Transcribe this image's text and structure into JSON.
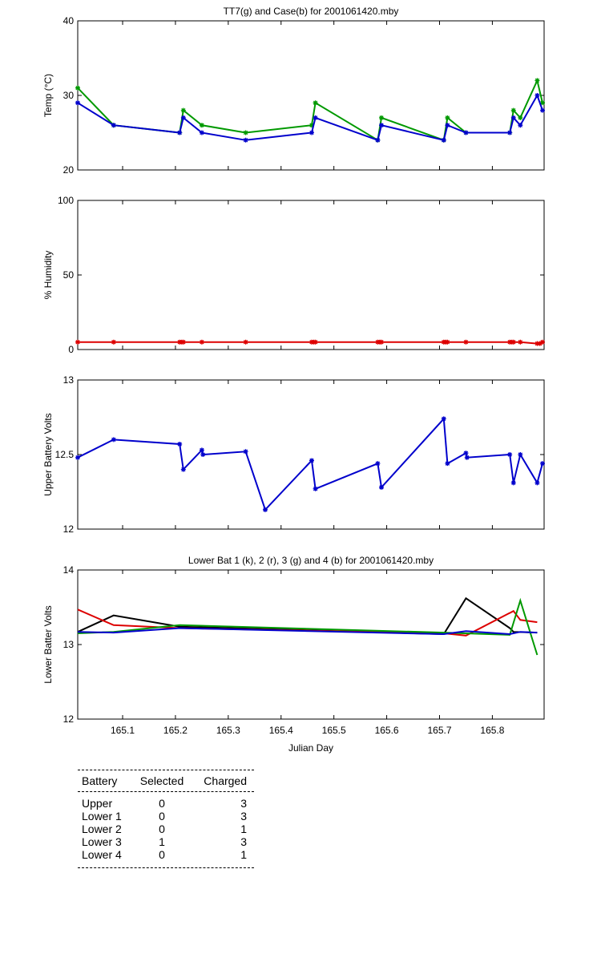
{
  "chart_data": [
    {
      "id": "temp",
      "type": "line",
      "title": "TT7(g) and Case(b) for 2001061420.mby",
      "xlabel": "",
      "ylabel": "Temp  (°C)",
      "xlim": [
        165.015,
        165.898
      ],
      "ylim": [
        20,
        40
      ],
      "yticks": [
        20,
        30,
        40
      ],
      "series": [
        {
          "name": "TT7",
          "color": "#009900",
          "marker": "*",
          "x": [
            165.015,
            165.083,
            165.208,
            165.215,
            165.25,
            165.333,
            165.458,
            165.465,
            165.583,
            165.59,
            165.708,
            165.715,
            165.75,
            165.833,
            165.84,
            165.853,
            165.885,
            165.895
          ],
          "y": [
            31,
            26,
            25,
            28,
            26,
            25,
            26,
            29,
            24,
            27,
            24,
            27,
            25,
            25,
            28,
            27,
            32,
            29
          ]
        },
        {
          "name": "Case",
          "color": "#0000cc",
          "marker": "*",
          "x": [
            165.015,
            165.083,
            165.208,
            165.215,
            165.25,
            165.333,
            165.458,
            165.465,
            165.583,
            165.59,
            165.708,
            165.715,
            165.75,
            165.833,
            165.84,
            165.853,
            165.885,
            165.895
          ],
          "y": [
            29,
            26,
            25,
            27,
            25,
            24,
            25,
            27,
            24,
            26,
            24,
            26,
            25,
            25,
            27,
            26,
            30,
            28
          ]
        }
      ]
    },
    {
      "id": "humidity",
      "type": "line",
      "title": "",
      "xlabel": "",
      "ylabel": "% Humidity",
      "xlim": [
        165.015,
        165.898
      ],
      "ylim": [
        0,
        100
      ],
      "yticks": [
        0,
        50,
        100
      ],
      "series": [
        {
          "name": "Humidity",
          "color": "#dd0000",
          "marker": "*",
          "x": [
            165.015,
            165.083,
            165.208,
            165.212,
            165.215,
            165.25,
            165.333,
            165.458,
            165.462,
            165.465,
            165.583,
            165.587,
            165.59,
            165.708,
            165.712,
            165.715,
            165.75,
            165.833,
            165.837,
            165.84,
            165.853,
            165.885,
            165.89,
            165.895
          ],
          "y": [
            5,
            5,
            5,
            5,
            5,
            5,
            5,
            5,
            5,
            5,
            5,
            5,
            5,
            5,
            5,
            5,
            5,
            5,
            5,
            5,
            5,
            4,
            4,
            5
          ]
        }
      ]
    },
    {
      "id": "upper",
      "type": "line",
      "title": "",
      "xlabel": "",
      "ylabel": "Upper Battery Volts",
      "xlim": [
        165.015,
        165.898
      ],
      "ylim": [
        12,
        13
      ],
      "yticks": [
        12,
        12.5,
        13
      ],
      "yticklabels": [
        "12",
        "12.5",
        "13"
      ],
      "series": [
        {
          "name": "Upper",
          "color": "#0000cc",
          "marker": "*",
          "x": [
            165.015,
            165.083,
            165.208,
            165.215,
            165.25,
            165.252,
            165.333,
            165.37,
            165.458,
            165.465,
            165.583,
            165.59,
            165.708,
            165.715,
            165.75,
            165.752,
            165.833,
            165.84,
            165.853,
            165.885,
            165.895
          ],
          "y": [
            12.48,
            12.6,
            12.57,
            12.4,
            12.53,
            12.5,
            12.52,
            12.13,
            12.46,
            12.27,
            12.44,
            12.28,
            12.74,
            12.44,
            12.51,
            12.48,
            12.5,
            12.31,
            12.5,
            12.31,
            12.44
          ]
        }
      ]
    },
    {
      "id": "lower",
      "type": "line",
      "title": "Lower Bat 1 (k), 2 (r), 3 (g) and 4 (b) for 2001061420.mby",
      "xlabel": "Julian Day",
      "ylabel": "Lower Batter Volts",
      "xlim": [
        165.015,
        165.898
      ],
      "ylim": [
        12,
        14
      ],
      "yticks": [
        12,
        13,
        14
      ],
      "xticks": [
        165.1,
        165.2,
        165.3,
        165.4,
        165.5,
        165.6,
        165.7,
        165.8
      ],
      "xticklabels": [
        "165.1",
        "165.2",
        "165.3",
        "165.4",
        "165.5",
        "165.6",
        "165.7",
        "165.8"
      ],
      "series": [
        {
          "name": "Lower Bat 1",
          "color": "#000000",
          "x": [
            165.015,
            165.083,
            165.208,
            165.708,
            165.75,
            165.833,
            165.84,
            165.885
          ],
          "y": [
            13.17,
            13.39,
            13.24,
            13.14,
            13.62,
            13.22,
            13.17,
            13.16
          ]
        },
        {
          "name": "Lower Bat 2",
          "color": "#dd0000",
          "x": [
            165.015,
            165.083,
            165.208,
            165.708,
            165.75,
            165.84,
            165.853,
            165.885
          ],
          "y": [
            13.47,
            13.26,
            13.22,
            13.15,
            13.12,
            13.45,
            13.33,
            13.3
          ]
        },
        {
          "name": "Lower Bat 3",
          "color": "#009900",
          "x": [
            165.015,
            165.083,
            165.208,
            165.708,
            165.833,
            165.853,
            165.885
          ],
          "y": [
            13.15,
            13.17,
            13.26,
            13.16,
            13.13,
            13.59,
            12.86
          ]
        },
        {
          "name": "Lower Bat 4",
          "color": "#0000cc",
          "x": [
            165.015,
            165.083,
            165.208,
            165.708,
            165.75,
            165.833,
            165.853,
            165.885
          ],
          "y": [
            13.17,
            13.16,
            13.22,
            13.14,
            13.18,
            13.14,
            13.17,
            13.16
          ]
        }
      ]
    }
  ],
  "battery_table": {
    "headers": [
      "Battery",
      "Selected",
      "Charged"
    ],
    "rows": [
      [
        "Upper",
        "0",
        "3"
      ],
      [
        "Lower 1",
        "0",
        "3"
      ],
      [
        "Lower 2",
        "0",
        "1"
      ],
      [
        "Lower 3",
        "1",
        "3"
      ],
      [
        "Lower 4",
        "0",
        "1"
      ]
    ]
  }
}
